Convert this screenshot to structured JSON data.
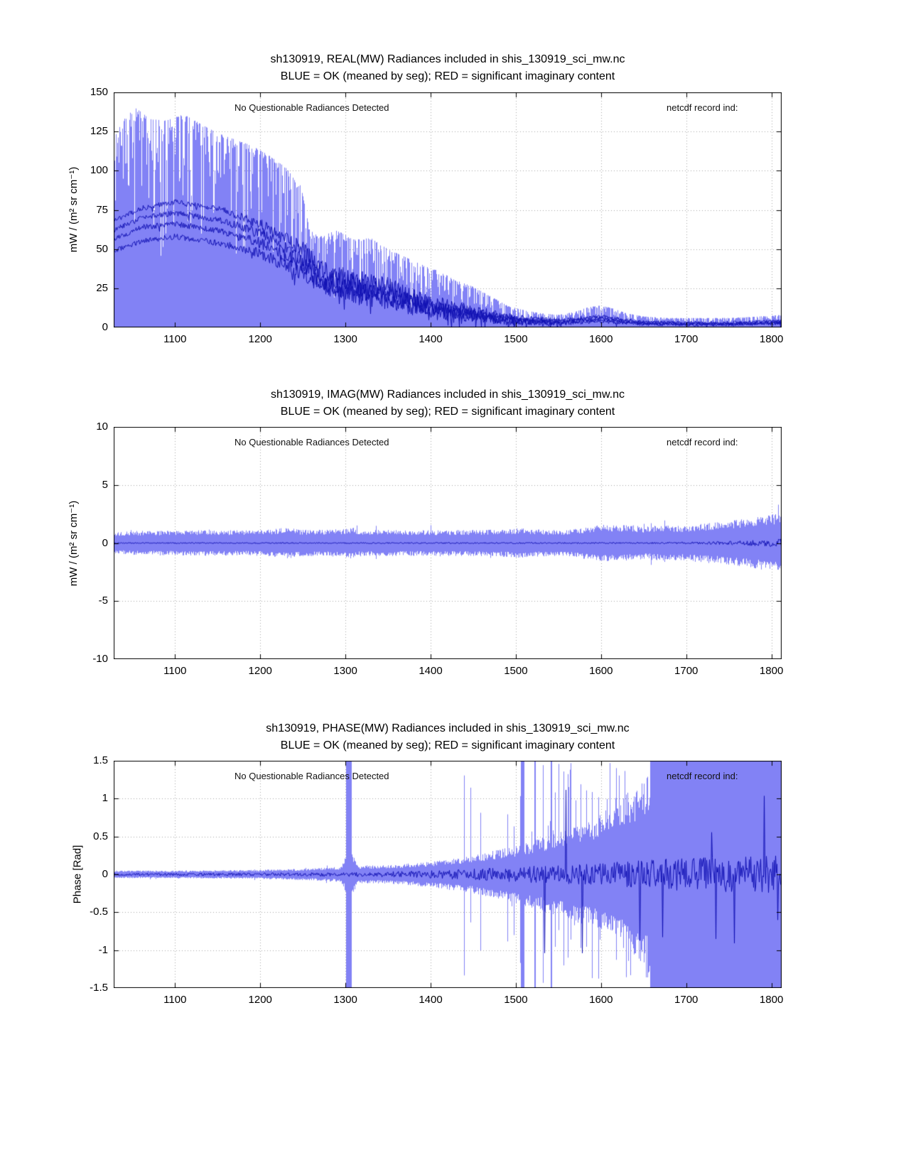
{
  "annotations_note": "",
  "chart_data": [
    {
      "type": "area",
      "kind": "real",
      "title": "sh130919, REAL(MW) Radiances included in shis_130919_sci_mw.nc",
      "subtitle": "BLUE = OK (meaned by seg); RED = significant imaginary content",
      "ylabel": "mW / (m² sr cm⁻¹)",
      "annotation_left": "No Questionable Radiances Detected",
      "annotation_right": "netcdf record ind:",
      "xlim": [
        1028,
        1812
      ],
      "ylim": [
        0,
        150
      ],
      "xticks": [
        1100,
        1200,
        1300,
        1400,
        1500,
        1600,
        1700,
        1800
      ],
      "yticks": [
        0,
        25,
        50,
        75,
        100,
        125,
        150
      ],
      "ytick_labels": [
        "0",
        "25",
        "50",
        "75",
        "100",
        "125",
        "150"
      ],
      "colors": {
        "fill": "#8282f5",
        "line": "#1111b4",
        "grid": "#a8a8a8"
      },
      "seed": 11,
      "envelope": {
        "x": [
          1028,
          1040,
          1055,
          1070,
          1090,
          1110,
          1130,
          1150,
          1170,
          1190,
          1210,
          1230,
          1248,
          1258,
          1270,
          1290,
          1310,
          1330,
          1350,
          1370,
          1390,
          1410,
          1430,
          1450,
          1470,
          1490,
          1510,
          1530,
          1550,
          1570,
          1585,
          1600,
          1615,
          1630,
          1650,
          1680,
          1710,
          1740,
          1770,
          1800,
          1812
        ],
        "upper": [
          120,
          134,
          140,
          133,
          132,
          136,
          130,
          124,
          120,
          116,
          110,
          102,
          90,
          62,
          58,
          62,
          56,
          57,
          50,
          45,
          40,
          36,
          30,
          26,
          20,
          14,
          11,
          9,
          8,
          10,
          13,
          14,
          12,
          9,
          7,
          6,
          6,
          6,
          6.5,
          7.5,
          8
        ]
      },
      "lines": [
        {
          "x": [
            1028,
            1060,
            1100,
            1150,
            1200,
            1250,
            1280,
            1310,
            1350,
            1400,
            1450,
            1500,
            1550,
            1600,
            1650,
            1700,
            1750,
            1810
          ],
          "y": [
            68,
            76,
            80,
            76,
            66,
            50,
            34,
            30,
            26,
            16,
            10,
            5.5,
            4.5,
            7,
            3.5,
            3,
            3,
            4
          ]
        },
        {
          "x": [
            1028,
            1060,
            1100,
            1150,
            1200,
            1250,
            1280,
            1310,
            1350,
            1400,
            1450,
            1500,
            1550,
            1600,
            1650,
            1700,
            1750,
            1810
          ],
          "y": [
            62,
            70,
            73,
            69,
            60,
            44,
            30,
            27,
            22,
            13,
            9,
            4.5,
            3.5,
            6,
            3,
            2.5,
            2.5,
            3.5
          ]
        },
        {
          "x": [
            1028,
            1060,
            1100,
            1150,
            1200,
            1250,
            1280,
            1310,
            1350,
            1400,
            1450,
            1500,
            1550,
            1600,
            1650,
            1700,
            1750,
            1810
          ],
          "y": [
            56,
            64,
            66,
            62,
            54,
            40,
            27,
            24,
            20,
            12,
            8,
            4,
            3,
            5,
            2.5,
            2,
            2,
            3
          ]
        },
        {
          "x": [
            1028,
            1060,
            1100,
            1150,
            1200,
            1250,
            1280,
            1310,
            1350,
            1400,
            1450,
            1500,
            1550,
            1600,
            1650,
            1700,
            1750,
            1810
          ],
          "y": [
            49,
            55,
            58,
            54,
            47,
            35,
            24,
            21,
            17,
            10,
            7,
            3.5,
            2.5,
            4,
            2,
            1.8,
            1.8,
            2.5
          ]
        }
      ],
      "line_noise": {
        "x": [
          1028,
          1150,
          1250,
          1300,
          1350,
          1450,
          1550,
          1650,
          1812
        ],
        "amp": [
          3,
          4,
          10,
          14,
          12,
          8,
          3,
          2,
          2
        ]
      }
    },
    {
      "type": "area",
      "kind": "imag",
      "title": "sh130919, IMAG(MW) Radiances included in shis_130919_sci_mw.nc",
      "subtitle": "BLUE = OK (meaned by seg); RED = significant imaginary content",
      "ylabel": "mW / (m² sr cm⁻¹)",
      "annotation_left": "No Questionable Radiances Detected",
      "annotation_right": "netcdf record ind:",
      "xlim": [
        1028,
        1812
      ],
      "ylim": [
        -10,
        10
      ],
      "xticks": [
        1100,
        1200,
        1300,
        1400,
        1500,
        1600,
        1700,
        1800
      ],
      "yticks": [
        -10,
        -5,
        0,
        5,
        10
      ],
      "ytick_labels": [
        "-10",
        "-5",
        "0",
        "5",
        "10"
      ],
      "colors": {
        "fill": "#8282f5",
        "line": "#1111b4",
        "grid": "#a8a8a8"
      },
      "seed": 22,
      "envelope": {
        "x": [
          1028,
          1100,
          1200,
          1235,
          1245,
          1255,
          1300,
          1308,
          1316,
          1400,
          1480,
          1505,
          1515,
          1560,
          1590,
          1605,
          1625,
          1650,
          1700,
          1745,
          1780,
          1812
        ],
        "half": [
          1.0,
          1.1,
          1.1,
          1.35,
          1.15,
          1.15,
          1.2,
          1.45,
          1.15,
          1.1,
          1.15,
          1.3,
          1.2,
          1.1,
          1.5,
          1.6,
          1.55,
          1.45,
          1.55,
          1.85,
          2.2,
          2.65
        ]
      },
      "line_noise": {
        "x": [
          1028,
          1650,
          1720,
          1770,
          1812
        ],
        "amp": [
          0.1,
          0.12,
          0.2,
          0.45,
          0.7
        ]
      }
    },
    {
      "type": "area",
      "kind": "phase",
      "title": "sh130919, PHASE(MW) Radiances included in shis_130919_sci_mw.nc",
      "subtitle": "BLUE = OK (meaned by seg); RED = significant imaginary content",
      "ylabel": "Phase [Rad]",
      "annotation_left": "No Questionable Radiances Detected",
      "annotation_right": "netcdf record ind:",
      "xlim": [
        1028,
        1812
      ],
      "ylim": [
        -1.5,
        1.5
      ],
      "xticks": [
        1100,
        1200,
        1300,
        1400,
        1500,
        1600,
        1700,
        1800
      ],
      "yticks": [
        -1.5,
        -1,
        -0.5,
        0,
        0.5,
        1,
        1.5
      ],
      "ytick_labels": [
        "-1.5",
        "-1",
        "-0.5",
        "0",
        "0.5",
        "1",
        "1.5"
      ],
      "colors": {
        "fill": "#8282f5",
        "line": "#1111b4",
        "grid": "#a8a8a8"
      },
      "seed": 33,
      "envelope": {
        "x": [
          1028,
          1100,
          1200,
          1260,
          1295,
          1305,
          1315,
          1350,
          1400,
          1450,
          1500,
          1550,
          1600,
          1630,
          1655,
          1812
        ],
        "half": [
          0.05,
          0.05,
          0.06,
          0.08,
          0.1,
          0.35,
          0.12,
          0.12,
          0.17,
          0.25,
          0.38,
          0.55,
          0.75,
          1.0,
          1.3,
          1.55
        ]
      },
      "spikes": {
        "onset": 1430,
        "full_from": 1658,
        "max_prob": 0.45,
        "clusters": [
          {
            "x": 1304,
            "w": 3
          },
          {
            "x": 1508,
            "w": 2
          },
          {
            "x": 1523,
            "w": 1
          },
          {
            "x": 1542,
            "w": 1
          }
        ]
      },
      "line_noise": {
        "x": [
          1028,
          1300,
          1400,
          1500,
          1600,
          1700,
          1812
        ],
        "amp": [
          0.03,
          0.05,
          0.1,
          0.2,
          0.3,
          0.45,
          0.5
        ]
      }
    }
  ]
}
